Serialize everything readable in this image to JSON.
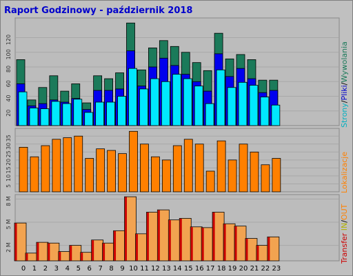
{
  "title": "Raport Godzinowy -  październik 2018",
  "colors": {
    "background": "#c0c0c0",
    "panel": "#bcbcbc",
    "hits": "#1b7a5a",
    "files": "#0000ee",
    "pages": "#00e8ff",
    "visits": "#ff8000",
    "kbytes_fill": "#f2a350",
    "kbytes_edge": "#cc0000",
    "label_pages": "#00b0c0",
    "label_files": "#0000cc",
    "label_hits": "#1b7a5a",
    "label_visits": "#ff8000",
    "label_transfer": "#cc0000",
    "label_in": "#b0b000",
    "label_out": "#ff8000"
  },
  "chart_data": [
    {
      "type": "bar",
      "panel": "requests",
      "categories": [
        "0",
        "1",
        "2",
        "3",
        "4",
        "5",
        "6",
        "7",
        "8",
        "9",
        "10",
        "11",
        "12",
        "13",
        "14",
        "15",
        "16",
        "17",
        "18",
        "19",
        "20",
        "21",
        "22",
        "23"
      ],
      "series": [
        {
          "name": "Wywolania",
          "values": [
            90,
            35,
            52,
            68,
            47,
            57,
            31,
            68,
            64,
            72,
            140,
            76,
            106,
            116,
            108,
            100,
            86,
            75,
            126,
            91,
            97,
            90,
            62,
            62
          ]
        },
        {
          "name": "Pliki",
          "values": [
            57,
            27,
            30,
            35,
            32,
            37,
            22,
            48,
            48,
            50,
            102,
            54,
            80,
            92,
            82,
            70,
            60,
            47,
            98,
            67,
            78,
            64,
            45,
            48
          ]
        },
        {
          "name": "Strony",
          "values": [
            46,
            24,
            23,
            33,
            30,
            36,
            18,
            32,
            32,
            40,
            78,
            50,
            64,
            60,
            70,
            64,
            54,
            30,
            76,
            52,
            59,
            55,
            39,
            28
          ]
        }
      ],
      "yticks": [
        "20",
        "40",
        "60",
        "80",
        "100",
        "120"
      ],
      "ylim": [
        0,
        145
      ],
      "side_labels": [
        "Strony",
        "Pliki",
        "Wywolania"
      ],
      "side_separator": "/"
    },
    {
      "type": "bar",
      "panel": "visits",
      "categories": [
        "0",
        "1",
        "2",
        "3",
        "4",
        "5",
        "6",
        "7",
        "8",
        "9",
        "10",
        "11",
        "12",
        "13",
        "14",
        "15",
        "16",
        "17",
        "18",
        "19",
        "20",
        "21",
        "22",
        "23"
      ],
      "series": [
        {
          "name": "Lokalizacje",
          "values": [
            28,
            22,
            29,
            33,
            34,
            35,
            21,
            27,
            26,
            24,
            38,
            30,
            22,
            20,
            29,
            33,
            30,
            13,
            32,
            20,
            30,
            25,
            17,
            21
          ]
        }
      ],
      "yticks": [
        "5",
        "10",
        "15",
        "20",
        "25",
        "30",
        "35"
      ],
      "ylim": [
        0,
        39
      ],
      "side_labels": [
        "Lokalizacje"
      ]
    },
    {
      "type": "bar",
      "panel": "transfer",
      "categories": [
        "0",
        "1",
        "2",
        "3",
        "4",
        "5",
        "6",
        "7",
        "8",
        "9",
        "10",
        "11",
        "12",
        "13",
        "14",
        "15",
        "16",
        "17",
        "18",
        "19",
        "20",
        "21",
        "22",
        "23"
      ],
      "series": [
        {
          "name": "Transfer",
          "unit": "MB",
          "values": [
            4.9,
            1.0,
            2.4,
            2.3,
            1.2,
            2.0,
            1.1,
            2.7,
            2.3,
            3.9,
            8.3,
            3.5,
            6.3,
            6.6,
            5.3,
            5.5,
            4.4,
            4.3,
            6.3,
            4.8,
            4.5,
            2.9,
            2.0,
            3.1
          ]
        }
      ],
      "yticks": [
        "2 M",
        "5 M",
        "8 M"
      ],
      "ytick_values": [
        2,
        5,
        8
      ],
      "ylim": [
        0,
        8.4
      ],
      "side_labels": [
        "Transfer",
        "IN",
        "OUT"
      ],
      "side_separator": "/"
    }
  ]
}
